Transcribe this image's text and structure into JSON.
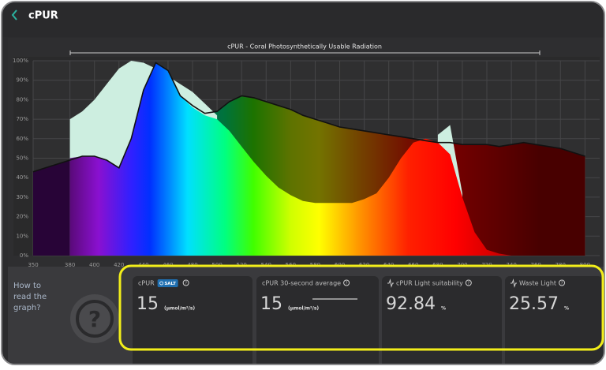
{
  "header": {
    "title": "cPUR"
  },
  "help": {
    "text": "How to read the graph?"
  },
  "cards": [
    {
      "label": "cPUR",
      "badge": "SALT",
      "value": 15,
      "unit": "(μmol/m²/s)"
    },
    {
      "label": "cPUR 30-second average",
      "value": 15,
      "unit": "(μmol/m²/s)"
    },
    {
      "label": "cPUR Light suitability",
      "value": 92.84,
      "unit": "%"
    },
    {
      "label": "Waste Light",
      "value": 25.57,
      "unit": "%"
    }
  ],
  "chart_data": {
    "type": "area",
    "title": "cPUR - Coral Photosynthetically Usable Radiation",
    "x": [
      350,
      360,
      370,
      380,
      390,
      400,
      410,
      420,
      430,
      440,
      450,
      460,
      470,
      480,
      490,
      500,
      510,
      520,
      530,
      540,
      550,
      560,
      570,
      580,
      590,
      600,
      610,
      620,
      630,
      640,
      650,
      660,
      670,
      680,
      690,
      700,
      710,
      720,
      730,
      740,
      750,
      760,
      770,
      780,
      790,
      800
    ],
    "series": [
      {
        "type": "line",
        "color": "#111111",
        "values": [
          43,
          45,
          47,
          49,
          51,
          51,
          49,
          45,
          60,
          85,
          99,
          95,
          82,
          77,
          73,
          74,
          79,
          82,
          81,
          79,
          77,
          75,
          72,
          70,
          68,
          66,
          65,
          64,
          63,
          62,
          61,
          60,
          59,
          58,
          58,
          57,
          57,
          57,
          56,
          57,
          58,
          57,
          56,
          55,
          53,
          51
        ]
      },
      {
        "type": "area",
        "color": "#cdeee0",
        "values": [
          null,
          null,
          null,
          70,
          74,
          80,
          88,
          96,
          100,
          99,
          96,
          92,
          88,
          84,
          78,
          72,
          null,
          null,
          null,
          null,
          null,
          null,
          null,
          null,
          null,
          null,
          null,
          null,
          null,
          null,
          null,
          null,
          null,
          62,
          67,
          32,
          null,
          null,
          null,
          null,
          null,
          null,
          null,
          null,
          null,
          null
        ]
      },
      {
        "type": "area",
        "values": [
          null,
          null,
          null,
          50,
          51,
          51,
          49,
          45,
          60,
          85,
          99,
          95,
          82,
          76,
          72,
          70,
          64,
          56,
          48,
          41,
          35,
          31,
          28,
          27,
          27,
          27,
          27,
          29,
          32,
          40,
          50,
          58,
          60,
          58,
          52,
          30,
          12,
          3,
          1,
          0,
          0,
          0,
          null,
          null,
          null,
          null
        ]
      }
    ],
    "xlim": [
      350,
      812
    ],
    "ylim": [
      0,
      100
    ],
    "xticks": [
      350,
      380,
      400,
      420,
      440,
      460,
      480,
      500,
      520,
      540,
      560,
      580,
      600,
      620,
      640,
      660,
      680,
      700,
      720,
      740,
      760,
      780,
      800
    ],
    "yticks": [
      {
        "value": 0,
        "label": "0%"
      },
      {
        "value": 10,
        "label": "10%"
      },
      {
        "value": 20,
        "label": "20%"
      },
      {
        "value": 30,
        "label": "30%"
      },
      {
        "value": 40,
        "label": "40%"
      },
      {
        "value": 50,
        "label": "50%"
      },
      {
        "value": 60,
        "label": "60%"
      },
      {
        "value": 70,
        "label": "70%"
      },
      {
        "value": 80,
        "label": "80%"
      },
      {
        "value": 90,
        "label": "90%"
      },
      {
        "value": 100,
        "label": "100%"
      }
    ],
    "grid": true
  }
}
